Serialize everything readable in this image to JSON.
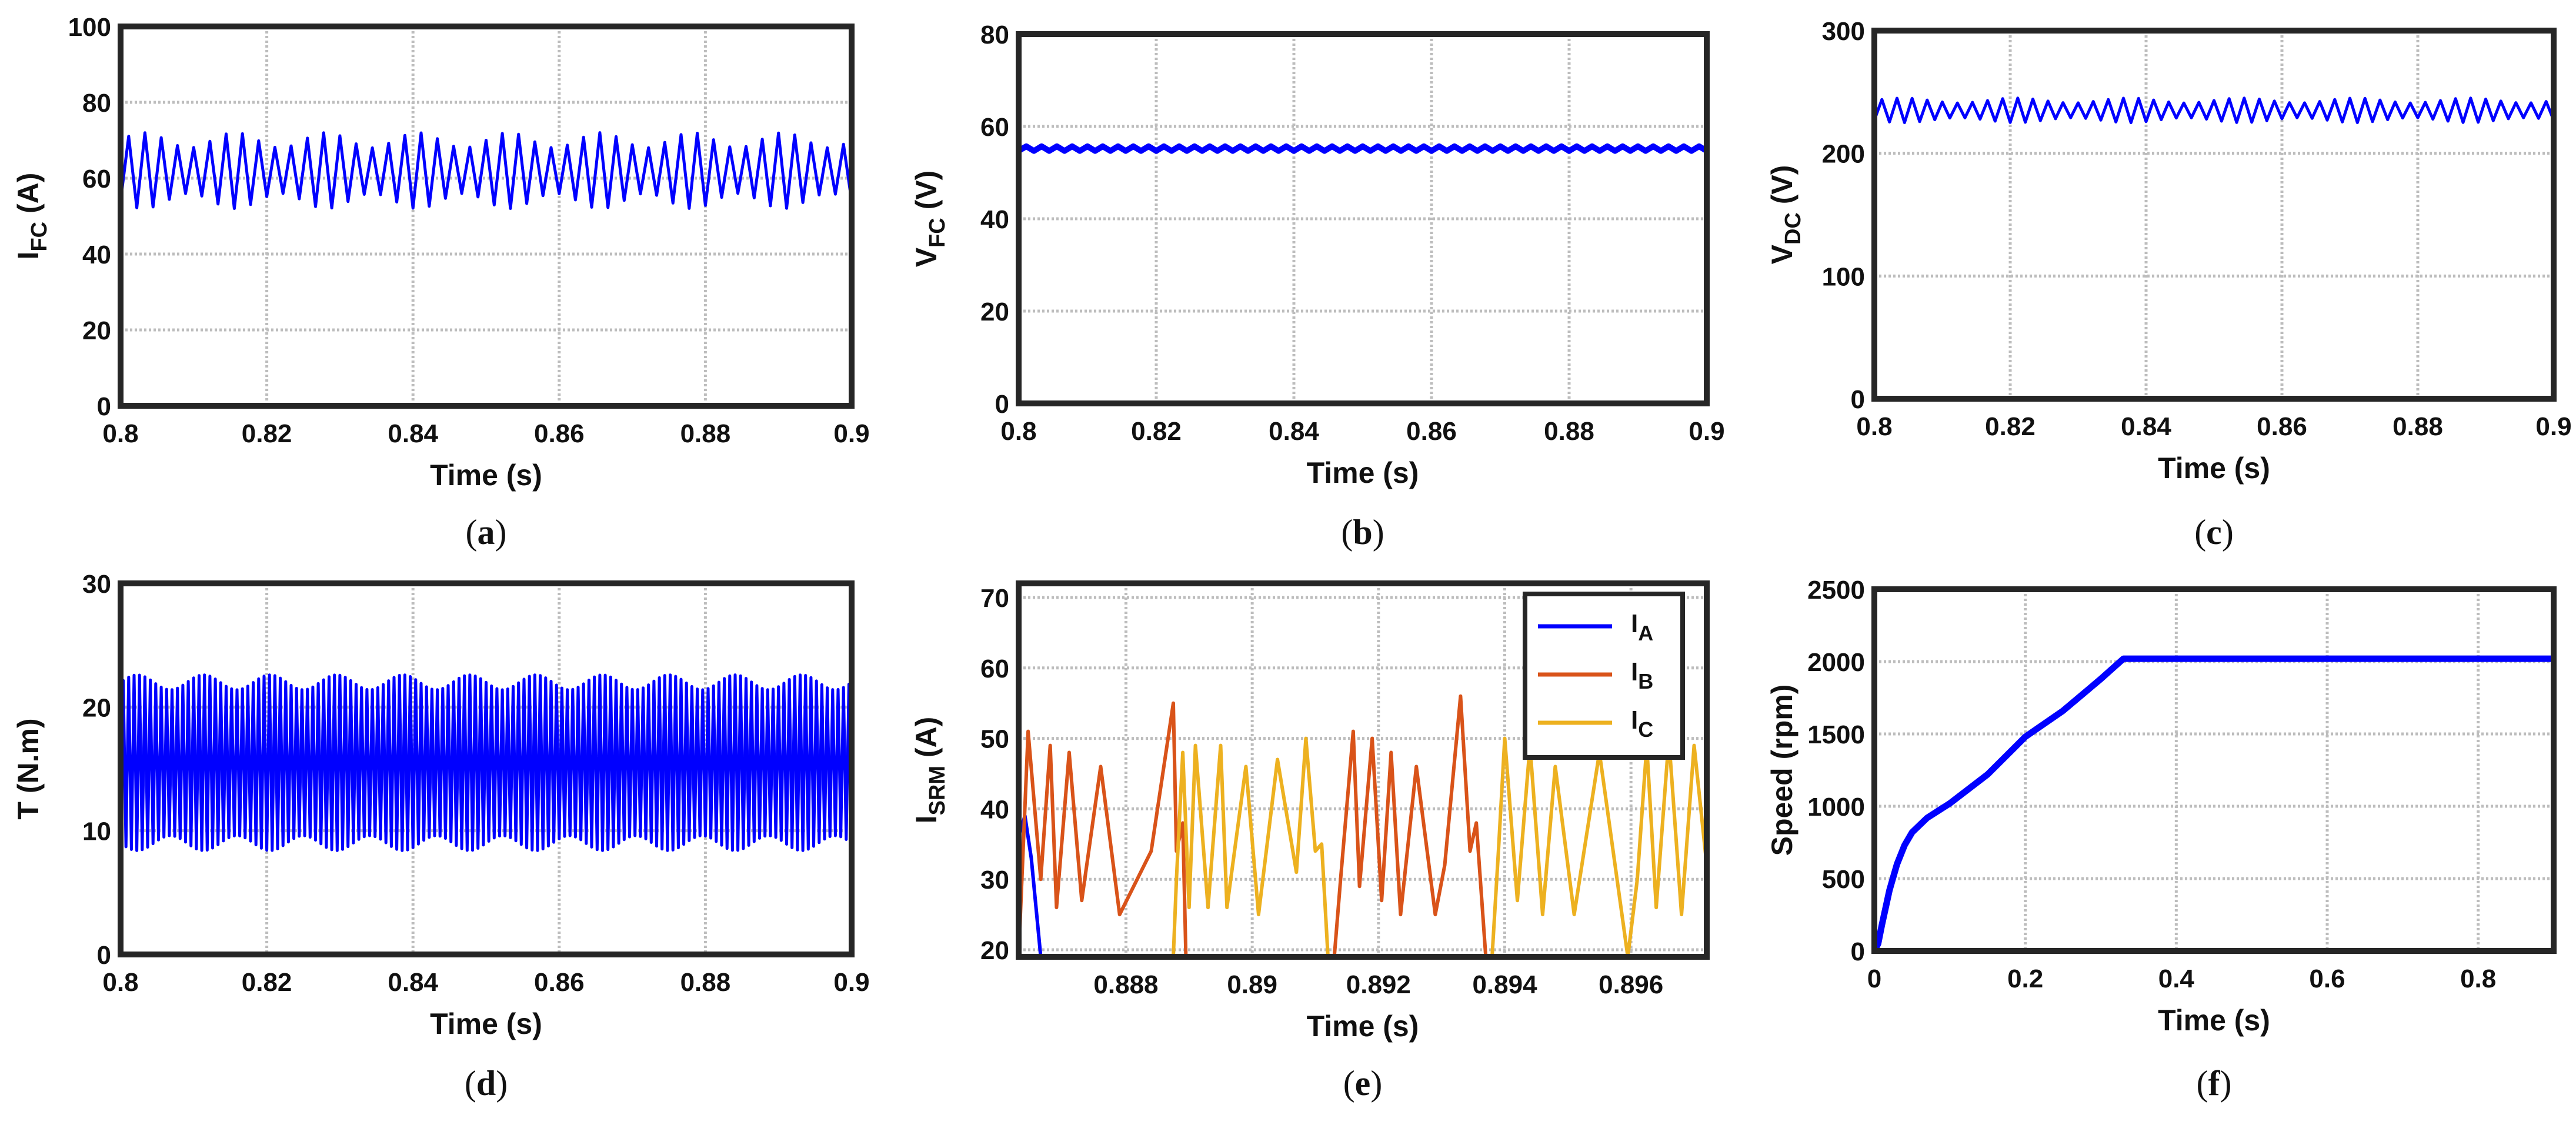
{
  "colors": {
    "blue": "#0000ff",
    "orange": "#d95319",
    "yellow": "#edb120",
    "grid": "#bdbdbd",
    "frame": "#262626"
  },
  "chart_data": [
    {
      "id": "a",
      "type": "line",
      "caption": "a",
      "xlabel": "Time (s)",
      "ylabel": {
        "main": "I",
        "sub": "FC",
        "unit": " (A)"
      },
      "xlim": [
        0.8,
        0.9
      ],
      "ylim": [
        0,
        100
      ],
      "xticks": [
        0.8,
        0.82,
        0.84,
        0.86,
        0.88,
        0.9
      ],
      "xtick_labels": [
        "0.8",
        "0.82",
        "0.84",
        "0.86",
        "0.88",
        "0.9"
      ],
      "yticks": [
        0,
        20,
        40,
        60,
        80,
        100
      ],
      "ytick_labels": [
        "0",
        "20",
        "40",
        "60",
        "80",
        "100"
      ],
      "series": [
        {
          "name": "I_FC",
          "kind": "ripple",
          "mean": 62,
          "amplitude": 8,
          "cycles": 45,
          "mod_amplitude": 2,
          "mod_cycles": 8
        }
      ]
    },
    {
      "id": "b",
      "type": "line",
      "caption": "b",
      "xlabel": "Time (s)",
      "ylabel": {
        "main": "V",
        "sub": "FC",
        "unit": " (V)"
      },
      "xlim": [
        0.8,
        0.9
      ],
      "ylim": [
        0,
        80
      ],
      "xticks": [
        0.8,
        0.82,
        0.84,
        0.86,
        0.88,
        0.9
      ],
      "xtick_labels": [
        "0.8",
        "0.82",
        "0.84",
        "0.86",
        "0.88",
        "0.9"
      ],
      "yticks": [
        0,
        20,
        40,
        60,
        80
      ],
      "ytick_labels": [
        "0",
        "20",
        "40",
        "60",
        "80"
      ],
      "series": [
        {
          "name": "V_FC",
          "kind": "ripple",
          "mean": 55.2,
          "amplitude": 0.5,
          "cycles": 45,
          "mod_amplitude": 0,
          "mod_cycles": 1
        }
      ]
    },
    {
      "id": "c",
      "type": "line",
      "caption": "c",
      "xlabel": "Time (s)",
      "ylabel": {
        "main": "V",
        "sub": "DC",
        "unit": " (V)"
      },
      "xlim": [
        0.8,
        0.9
      ],
      "ylim": [
        0,
        300
      ],
      "xticks": [
        0.8,
        0.82,
        0.84,
        0.86,
        0.88,
        0.9
      ],
      "xtick_labels": [
        "0.8",
        "0.82",
        "0.84",
        "0.86",
        "0.88",
        "0.9"
      ],
      "yticks": [
        0,
        100,
        200,
        300
      ],
      "ytick_labels": [
        "0",
        "100",
        "200",
        "300"
      ],
      "series": [
        {
          "name": "V_DC",
          "kind": "ripple",
          "mean": 235,
          "amplitude": 8,
          "cycles": 45,
          "mod_amplitude": 2,
          "mod_cycles": 6
        }
      ]
    },
    {
      "id": "d",
      "type": "line",
      "caption": "d",
      "xlabel": "Time (s)",
      "ylabel": {
        "main": "T (N.m)",
        "sub": "",
        "unit": ""
      },
      "xlim": [
        0.8,
        0.9
      ],
      "ylim": [
        0,
        30
      ],
      "xticks": [
        0.8,
        0.82,
        0.84,
        0.86,
        0.88,
        0.9
      ],
      "xtick_labels": [
        "0.8",
        "0.82",
        "0.84",
        "0.86",
        "0.88",
        "0.9"
      ],
      "yticks": [
        0,
        10,
        20,
        30
      ],
      "ytick_labels": [
        "0",
        "10",
        "20",
        "30"
      ],
      "series": [
        {
          "name": "T",
          "kind": "ripple",
          "mean": 15.5,
          "amplitude": 6.5,
          "cycles": 135,
          "mod_amplitude": 0.6,
          "mod_cycles": 11
        }
      ]
    },
    {
      "id": "e",
      "type": "line",
      "caption": "e",
      "xlabel": "Time (s)",
      "ylabel": {
        "main": "I",
        "sub": "SRM",
        "unit": " (A)"
      },
      "xlim": [
        0.8863,
        0.8972
      ],
      "ylim": [
        19,
        72
      ],
      "xticks": [
        0.888,
        0.89,
        0.892,
        0.894,
        0.896
      ],
      "xtick_labels": [
        "0.888",
        "0.89",
        "0.892",
        "0.894",
        "0.896"
      ],
      "yticks": [
        20,
        30,
        40,
        50,
        60,
        70
      ],
      "ytick_labels": [
        "20",
        "30",
        "40",
        "50",
        "60",
        "70"
      ],
      "legend": {
        "entries": [
          {
            "main": "I",
            "sub": "A"
          },
          {
            "main": "I",
            "sub": "B"
          },
          {
            "main": "I",
            "sub": "C"
          }
        ],
        "location": "top-right"
      },
      "series": [
        {
          "name": "I_A",
          "color_key": "blue",
          "points": [
            [
              0.8863,
              36
            ],
            [
              0.8864,
              39
            ],
            [
              0.8865,
              33
            ],
            [
              0.88665,
              19
            ]
          ]
        },
        {
          "name": "I_B",
          "color_key": "orange",
          "points": [
            [
              0.8863,
              19
            ],
            [
              0.88645,
              51
            ],
            [
              0.88665,
              30
            ],
            [
              0.8868,
              49
            ],
            [
              0.8869,
              26
            ],
            [
              0.8871,
              48
            ],
            [
              0.8873,
              27
            ],
            [
              0.8876,
              46
            ],
            [
              0.8879,
              25
            ],
            [
              0.8884,
              34
            ],
            [
              0.88875,
              55
            ],
            [
              0.8888,
              34
            ],
            [
              0.8889,
              38
            ],
            [
              0.88895,
              19
            ],
            [
              0.8913,
              19
            ],
            [
              0.8914,
              30
            ],
            [
              0.8916,
              51
            ],
            [
              0.8917,
              29
            ],
            [
              0.8919,
              50
            ],
            [
              0.89205,
              27
            ],
            [
              0.8922,
              48
            ],
            [
              0.89235,
              25
            ],
            [
              0.8926,
              46
            ],
            [
              0.8929,
              25
            ],
            [
              0.89305,
              32
            ],
            [
              0.8933,
              56
            ],
            [
              0.89345,
              34
            ],
            [
              0.89355,
              38
            ],
            [
              0.8937,
              19
            ]
          ]
        },
        {
          "name": "I_C",
          "color_key": "yellow",
          "points": [
            [
              0.88875,
              19
            ],
            [
              0.8888,
              30
            ],
            [
              0.8889,
              48
            ],
            [
              0.889,
              26
            ],
            [
              0.8891,
              49
            ],
            [
              0.8893,
              26
            ],
            [
              0.8895,
              49
            ],
            [
              0.8896,
              26
            ],
            [
              0.8899,
              46
            ],
            [
              0.8901,
              25
            ],
            [
              0.8904,
              47
            ],
            [
              0.8907,
              31
            ],
            [
              0.89085,
              50
            ],
            [
              0.891,
              34
            ],
            [
              0.8911,
              35
            ],
            [
              0.8912,
              19
            ],
            [
              0.8938,
              19
            ],
            [
              0.8939,
              34
            ],
            [
              0.894,
              50
            ],
            [
              0.8942,
              27
            ],
            [
              0.8944,
              49
            ],
            [
              0.8946,
              25
            ],
            [
              0.8948,
              46
            ],
            [
              0.8951,
              25
            ],
            [
              0.8955,
              48
            ],
            [
              0.89595,
              19
            ],
            [
              0.8961,
              30
            ],
            [
              0.89625,
              49
            ],
            [
              0.8964,
              26
            ],
            [
              0.8966,
              50
            ],
            [
              0.8968,
              25
            ],
            [
              0.897,
              49
            ],
            [
              0.8972,
              32
            ]
          ]
        }
      ]
    },
    {
      "id": "f",
      "type": "line",
      "caption": "f",
      "xlabel": "Time (s)",
      "ylabel": {
        "main": "Speed (rpm)",
        "sub": "",
        "unit": ""
      },
      "xlim": [
        0,
        0.9
      ],
      "ylim": [
        0,
        2500
      ],
      "xticks": [
        0,
        0.2,
        0.4,
        0.6,
        0.8
      ],
      "xtick_labels": [
        "0",
        "0.2",
        "0.4",
        "0.6",
        "0.8"
      ],
      "yticks": [
        0,
        500,
        1000,
        1500,
        2000,
        2500
      ],
      "ytick_labels": [
        "0",
        "500",
        "1000",
        "1500",
        "2000",
        "2500"
      ],
      "series": [
        {
          "name": "Speed",
          "points": [
            [
              0,
              0
            ],
            [
              0.005,
              50
            ],
            [
              0.01,
              180
            ],
            [
              0.02,
              420
            ],
            [
              0.03,
              600
            ],
            [
              0.04,
              730
            ],
            [
              0.05,
              820
            ],
            [
              0.07,
              920
            ],
            [
              0.1,
              1020
            ],
            [
              0.15,
              1220
            ],
            [
              0.2,
              1480
            ],
            [
              0.25,
              1660
            ],
            [
              0.3,
              1880
            ],
            [
              0.33,
              2020
            ],
            [
              0.4,
              2020
            ],
            [
              0.6,
              2020
            ],
            [
              0.8,
              2020
            ],
            [
              0.9,
              2020
            ]
          ]
        }
      ]
    }
  ]
}
